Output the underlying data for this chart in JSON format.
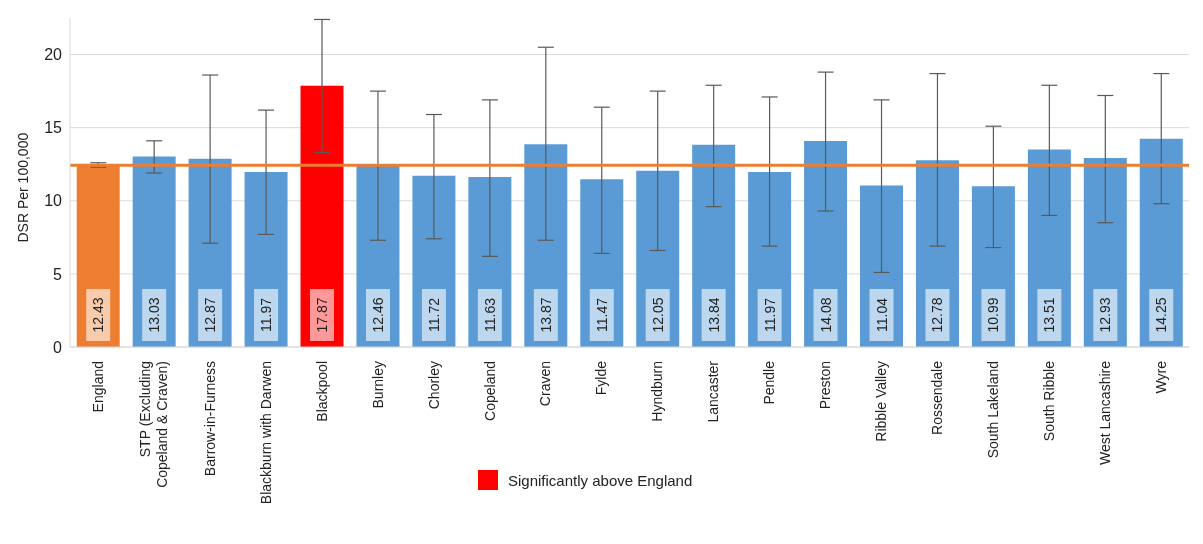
{
  "chart_data": {
    "type": "bar",
    "ylabel": "DSR Per 100,000",
    "categories": [
      "England",
      "STP (Excluding Copeland & Craven)",
      "Barrow-in-Furness",
      "Blackburn with Darwen",
      "Blackpool",
      "Burnley",
      "Chorley",
      "Copeland",
      "Craven",
      "Fylde",
      "Hyndburn",
      "Lancaster",
      "Pendle",
      "Preston",
      "Ribble Valley",
      "Rossendale",
      "South Lakeland",
      "South Ribble",
      "West Lancashire",
      "Wyre"
    ],
    "stacked": true,
    "series": [
      {
        "colors": [
          "#ed7d31",
          "#5b9bd5",
          "#5b9bd5",
          "#5b9bd5",
          null,
          "#5b9bd5",
          "#5b9bd5",
          "#5b9bd5",
          "#5b9bd5",
          "#5b9bd5",
          "#5b9bd5",
          "#5b9bd5",
          "#5b9bd5",
          "#5b9bd5",
          "#5b9bd5",
          "#5b9bd5",
          "#5b9bd5",
          "#5b9bd5",
          "#5b9bd5",
          "#5b9bd5"
        ],
        "values": [
          12.43,
          13.03,
          12.87,
          11.97,
          null,
          12.46,
          11.72,
          11.63,
          13.87,
          11.47,
          12.05,
          13.84,
          11.97,
          14.08,
          11.04,
          12.78,
          10.99,
          13.51,
          12.93,
          14.25
        ],
        "errors": [
          [
            12.3,
            12.6
          ],
          [
            11.9,
            14.1
          ],
          [
            7.1,
            18.6
          ],
          [
            7.7,
            16.2
          ],
          null,
          [
            7.3,
            17.5
          ],
          [
            7.4,
            15.9
          ],
          [
            6.2,
            16.9
          ],
          [
            7.3,
            20.5
          ],
          [
            6.4,
            16.4
          ],
          [
            6.6,
            17.5
          ],
          [
            9.6,
            17.9
          ],
          [
            6.9,
            17.1
          ],
          [
            9.3,
            18.8
          ],
          [
            5.1,
            16.9
          ],
          [
            6.9,
            18.7
          ],
          [
            6.8,
            15.1
          ],
          [
            9.0,
            17.9
          ],
          [
            8.5,
            17.2
          ],
          [
            9.8,
            18.7
          ]
        ]
      },
      {
        "name": "Significantly above England",
        "color": "#ff0000",
        "values": [
          null,
          null,
          null,
          null,
          17.87,
          null,
          null,
          null,
          null,
          null,
          null,
          null,
          null,
          null,
          null,
          null,
          null,
          null,
          null,
          null
        ],
        "errors": [
          null,
          null,
          null,
          null,
          [
            13.3,
            22.4
          ],
          null,
          null,
          null,
          null,
          null,
          null,
          null,
          null,
          null,
          null,
          null,
          null,
          null,
          null,
          null
        ]
      }
    ],
    "ylim": [
      0,
      22.5
    ],
    "yticks": [
      0,
      5,
      10,
      15,
      20
    ],
    "grid": "y",
    "legend": "bottom",
    "data_labels": true,
    "ref_lines": [
      {
        "axis": "y",
        "value": 12.43,
        "color": "#ed7d31"
      }
    ]
  }
}
